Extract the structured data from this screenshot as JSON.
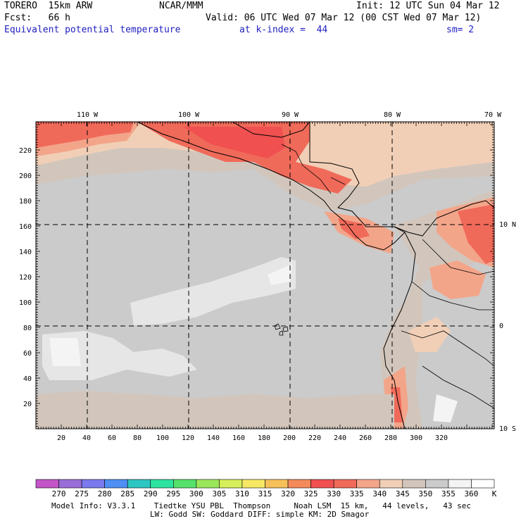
{
  "header": {
    "model": "TORERO  15km ARW",
    "center": "NCAR/MMM",
    "init": "Init: 12 UTC Sun 04 Mar 12",
    "fcst": "Fcst:   66 h",
    "valid": "Valid: 06 UTC Wed 07 Mar 12 (00 CST Wed 07 Mar 12)",
    "field": "Equivalent potential temperature",
    "level": "at k-index =  44",
    "smooth": "sm= 2"
  },
  "map": {
    "lon_labels": [
      "110 W",
      "100 W",
      "90 W",
      "80 W",
      "70 W"
    ],
    "lat_labels": [
      "10 N",
      "0",
      "10 S"
    ],
    "x_ticks": [
      "20",
      "40",
      "60",
      "80",
      "100",
      "120",
      "140",
      "160",
      "180",
      "200",
      "220",
      "240",
      "260",
      "280",
      "300",
      "320"
    ],
    "y_ticks": [
      "20",
      "40",
      "60",
      "80",
      "100",
      "120",
      "140",
      "160",
      "180",
      "200",
      "220"
    ]
  },
  "colorbar": {
    "labels": [
      "270",
      "275",
      "280",
      "285",
      "290",
      "295",
      "300",
      "305",
      "310",
      "315",
      "320",
      "325",
      "330",
      "335",
      "340",
      "345",
      "350",
      "355",
      "360"
    ],
    "unit": "K",
    "colors": [
      "#c455c8",
      "#9a6ed8",
      "#7a7aee",
      "#4f8ff3",
      "#2ec6c2",
      "#2ee2a0",
      "#56e06c",
      "#9ae65a",
      "#d6ee5a",
      "#f6e864",
      "#f6c05a",
      "#f48a5a",
      "#f05050",
      "#f06a5a",
      "#f3a58a",
      "#f1cfb6",
      "#d2c6bc",
      "#cbcbcb",
      "#f4f4f4",
      "#ffffff"
    ]
  },
  "footer": {
    "line1": "Model Info: V3.3.1    Tiedtke YSU PBL  Thompson     Noah LSM  15 km,   44 levels,   43 sec",
    "line2": "LW: Godd SW: Goddard DIFF: simple KM: 2D Smagor"
  }
}
